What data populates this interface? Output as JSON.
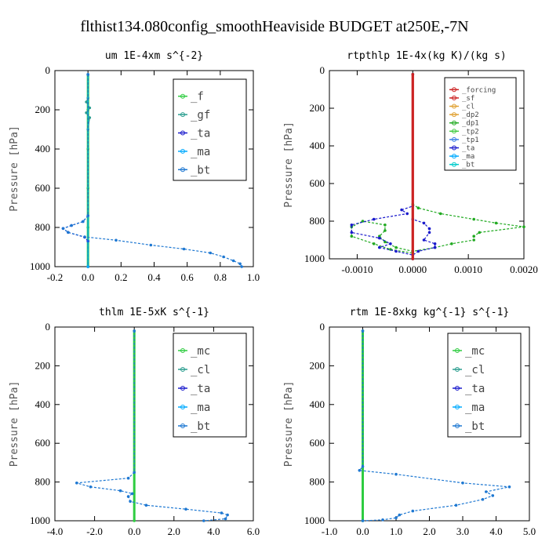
{
  "figure_title": "flthist134.080config_smoothHeaviside  BUDGET at250E,-7N",
  "chart_data": [
    {
      "type": "line",
      "title": "um  1E-4xm s^{-2}",
      "ylabel": "Pressure [hPa]",
      "xlim": [
        -0.2,
        1.0
      ],
      "ylim": [
        1000,
        0
      ],
      "xticks": [
        "-0.2",
        "0.0",
        "0.2",
        "0.4",
        "0.6",
        "0.8",
        "1.0"
      ],
      "yticks": [
        "0",
        "200",
        "400",
        "600",
        "800",
        "1000"
      ],
      "legend": [
        "_f",
        "_gf",
        "_ta",
        "_ma",
        "_bt"
      ],
      "series": [
        {
          "name": "_f",
          "color": "#2ecc40",
          "points": [
            [
              0,
              20
            ],
            [
              0,
              200
            ],
            [
              0,
              400
            ],
            [
              0,
              600
            ],
            [
              0,
              800
            ],
            [
              0,
              1000
            ]
          ]
        },
        {
          "name": "_gf",
          "color": "#2a9d8f",
          "points": [
            [
              0,
              20
            ],
            [
              0,
              140
            ],
            [
              -0.01,
              160
            ],
            [
              0.01,
              190
            ],
            [
              -0.01,
              215
            ],
            [
              0.01,
              240
            ],
            [
              0,
              300
            ],
            [
              0,
              1000
            ]
          ]
        },
        {
          "name": "_ta",
          "color": "#1a1acc",
          "points": [
            [
              0,
              20
            ],
            [
              0,
              740
            ],
            [
              -0.03,
              770
            ],
            [
              -0.1,
              790
            ],
            [
              -0.15,
              805
            ],
            [
              -0.12,
              825
            ],
            [
              -0.02,
              850
            ],
            [
              0,
              870
            ],
            [
              0,
              1000
            ]
          ]
        },
        {
          "name": "_ma",
          "color": "#00aaff",
          "points": [
            [
              0,
              20
            ],
            [
              0,
              1000
            ]
          ]
        },
        {
          "name": "_bt",
          "color": "#1e78d2",
          "points": [
            [
              0,
              20
            ],
            [
              0,
              740
            ],
            [
              -0.03,
              770
            ],
            [
              -0.1,
              790
            ],
            [
              -0.15,
              805
            ],
            [
              -0.12,
              825
            ],
            [
              -0.02,
              848
            ],
            [
              0.17,
              865
            ],
            [
              0.38,
              890
            ],
            [
              0.58,
              910
            ],
            [
              0.74,
              930
            ],
            [
              0.82,
              950
            ],
            [
              0.88,
              970
            ],
            [
              0.92,
              985
            ],
            [
              0.93,
              1000
            ]
          ]
        }
      ]
    },
    {
      "type": "line",
      "title": "rtpthlp  1E-4x(kg K)/(kg s)",
      "ylabel": "Pressure [hPa]",
      "xlim": [
        -0.0015,
        0.002
      ],
      "ylim": [
        1000,
        0
      ],
      "xticks": [
        "-0.0010",
        "0.0000",
        "0.0010",
        "0.0020"
      ],
      "xtick_values": [
        -0.001,
        0,
        0.001,
        0.002
      ],
      "yticks": [
        "0",
        "200",
        "400",
        "600",
        "800",
        "1000"
      ],
      "legend": [
        "_forcing",
        "_sf",
        "_cl",
        "_dp2",
        "_dp1",
        "_tp2",
        "_tp1",
        "_ta",
        "_ma",
        "_bt"
      ],
      "series": [
        {
          "name": "_forcing",
          "color": "#cc2222",
          "points": [
            [
              0,
              20
            ],
            [
              0,
              1000
            ]
          ]
        },
        {
          "name": "_tp2",
          "color": "#22aa22",
          "points": [
            [
              0,
              20
            ],
            [
              0,
              710
            ],
            [
              0.0001,
              730
            ],
            [
              0.0005,
              760
            ],
            [
              0.0011,
              790
            ],
            [
              0.0015,
              810
            ],
            [
              0.002,
              830
            ],
            [
              0.0012,
              860
            ],
            [
              0.0011,
              880
            ],
            [
              0.0011,
              900
            ],
            [
              0.0007,
              920
            ],
            [
              0.0004,
              940
            ],
            [
              0,
              960
            ],
            [
              -0.0003,
              940
            ],
            [
              -0.0005,
              910
            ],
            [
              -0.0006,
              880
            ],
            [
              -0.0005,
              850
            ],
            [
              -0.0005,
              820
            ],
            [
              -0.0009,
              800
            ],
            [
              -0.0011,
              830
            ],
            [
              -0.0011,
              880
            ],
            [
              -0.0007,
              920
            ],
            [
              -0.0004,
              950
            ],
            [
              0,
              970
            ],
            [
              0,
              1000
            ]
          ]
        },
        {
          "name": "_ta",
          "color": "#1a1acc",
          "points": [
            [
              0,
              20
            ],
            [
              0,
              720
            ],
            [
              -0.0002,
              740
            ],
            [
              -0.0001,
              760
            ],
            [
              -0.0007,
              790
            ],
            [
              -0.0011,
              820
            ],
            [
              -0.0011,
              860
            ],
            [
              -0.0006,
              890
            ],
            [
              -0.0004,
              920
            ],
            [
              -0.0006,
              940
            ],
            [
              -0.0003,
              960
            ],
            [
              0,
              980
            ],
            [
              0.0001,
              960
            ],
            [
              0.0004,
              940
            ],
            [
              0.0004,
              920
            ],
            [
              0.0002,
              900
            ],
            [
              0.0003,
              860
            ],
            [
              0.0003,
              840
            ],
            [
              0.0002,
              810
            ],
            [
              0,
              790
            ],
            [
              0,
              1000
            ]
          ]
        },
        {
          "name": "_bt",
          "color": "#cc2222",
          "points": [
            [
              0,
              20
            ],
            [
              0,
              1000
            ]
          ]
        }
      ]
    },
    {
      "type": "line",
      "title": "thlm  1E-5xK s^{-1}",
      "ylabel": "Pressure [hPa]",
      "xlim": [
        -4.0,
        6.0
      ],
      "ylim": [
        1000,
        0
      ],
      "xticks": [
        "-4.0",
        "-2.0",
        "0.0",
        "2.0",
        "4.0",
        "6.0"
      ],
      "yticks": [
        "0",
        "200",
        "400",
        "600",
        "800",
        "1000"
      ],
      "legend": [
        "_mc",
        "_cl",
        "_ta",
        "_ma",
        "_bt"
      ],
      "series": [
        {
          "name": "_mc",
          "color": "#2ecc40",
          "points": [
            [
              0,
              20
            ],
            [
              0,
              1000
            ]
          ]
        },
        {
          "name": "_bt",
          "color": "#1e78d2",
          "points": [
            [
              0,
              20
            ],
            [
              0,
              750
            ],
            [
              -0.3,
              780
            ],
            [
              -2.9,
              805
            ],
            [
              -2.2,
              825
            ],
            [
              -0.7,
              845
            ],
            [
              -0.1,
              860
            ],
            [
              -0.3,
              875
            ],
            [
              -0.2,
              900
            ],
            [
              0.6,
              920
            ],
            [
              2.6,
              940
            ],
            [
              4.4,
              960
            ],
            [
              4.7,
              970
            ],
            [
              4.6,
              990
            ],
            [
              3.5,
              1000
            ]
          ]
        }
      ]
    },
    {
      "type": "line",
      "title": "rtm  1E-8xkg kg^{-1} s^{-1}",
      "ylabel": "Pressure [hPa]",
      "xlim": [
        -1.0,
        5.0
      ],
      "ylim": [
        1000,
        0
      ],
      "xticks": [
        "-1.0",
        "0.0",
        "1.0",
        "2.0",
        "3.0",
        "4.0",
        "5.0"
      ],
      "yticks": [
        "0",
        "200",
        "400",
        "600",
        "800",
        "1000"
      ],
      "legend": [
        "_mc",
        "_cl",
        "_ta",
        "_ma",
        "_bt"
      ],
      "series": [
        {
          "name": "_mc",
          "color": "#2ecc40",
          "points": [
            [
              0,
              20
            ],
            [
              0,
              1000
            ]
          ]
        },
        {
          "name": "_bt",
          "color": "#1e78d2",
          "points": [
            [
              0,
              20
            ],
            [
              0,
              720
            ],
            [
              -0.1,
              740
            ],
            [
              1,
              760
            ],
            [
              3,
              805
            ],
            [
              4.4,
              825
            ],
            [
              3.7,
              850
            ],
            [
              3.9,
              870
            ],
            [
              3.6,
              890
            ],
            [
              2.8,
              920
            ],
            [
              1.5,
              950
            ],
            [
              1.1,
              970
            ],
            [
              1,
              985
            ],
            [
              0.6,
              995
            ],
            [
              0,
              1000
            ]
          ]
        }
      ]
    }
  ]
}
